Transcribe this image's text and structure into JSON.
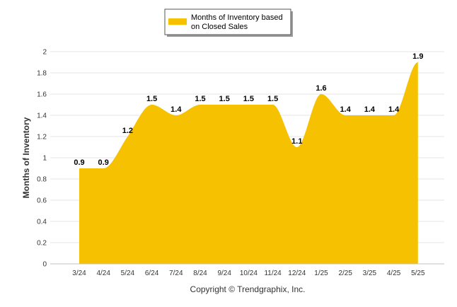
{
  "chart_data": {
    "type": "area",
    "categories": [
      "3/24",
      "4/24",
      "5/24",
      "6/24",
      "7/24",
      "8/24",
      "9/24",
      "10/24",
      "11/24",
      "12/24",
      "1/25",
      "2/25",
      "3/25",
      "4/25",
      "5/25"
    ],
    "series": [
      {
        "name": "Months of Inventory based on Closed Sales",
        "values": [
          0.9,
          0.9,
          1.2,
          1.5,
          1.4,
          1.5,
          1.5,
          1.5,
          1.5,
          1.1,
          1.6,
          1.4,
          1.4,
          1.4,
          1.9
        ],
        "value_labels": [
          "0.9",
          "0.9",
          "1.2",
          "1.5",
          "1.4",
          "1.5",
          "1.5",
          "1.5",
          "1.5",
          "1.1",
          "1.6",
          "1.4",
          "1.4",
          "1.4",
          "1.9"
        ],
        "color": "#F5C100"
      }
    ],
    "ylabel": "Months of Inventory",
    "xlabel": "",
    "ylim": [
      0,
      2
    ],
    "yticks": [
      "0",
      "0.2",
      "0.4",
      "0.6",
      "0.8",
      "1",
      "1.2",
      "1.4",
      "1.6",
      "1.8",
      "2"
    ],
    "grid": true,
    "legend": {
      "position": "top-center",
      "line1": "Months of Inventory based",
      "line2": "on Closed Sales"
    },
    "footer": "Copyright © Trendgraphix, Inc."
  }
}
